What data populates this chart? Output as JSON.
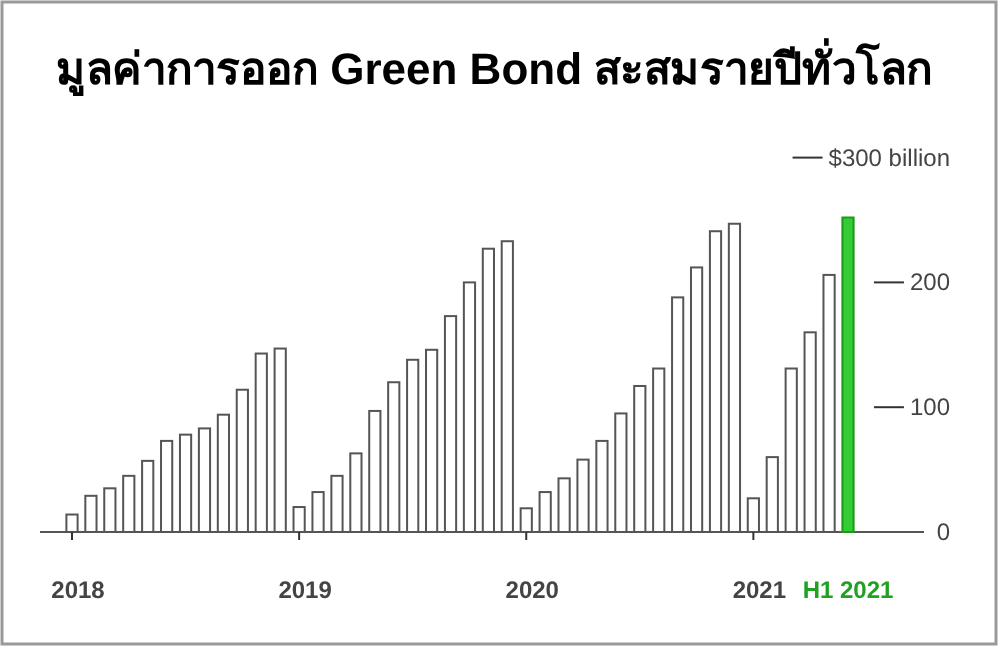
{
  "chart_data": {
    "type": "bar",
    "title": "มูลค่าการออก Green Bond สะสมรายปีทั่วโลก",
    "categories": [
      "2018",
      null,
      null,
      null,
      null,
      null,
      null,
      null,
      null,
      null,
      null,
      null,
      "2019",
      null,
      null,
      null,
      null,
      null,
      null,
      null,
      null,
      null,
      null,
      null,
      "2020",
      null,
      null,
      null,
      null,
      null,
      null,
      null,
      null,
      null,
      null,
      null,
      "2021",
      null,
      null,
      null,
      null,
      "H1 2021"
    ],
    "values": [
      14,
      29,
      35,
      45,
      57,
      73,
      78,
      83,
      94,
      114,
      143,
      147,
      20,
      32,
      45,
      63,
      97,
      120,
      138,
      146,
      173,
      200,
      227,
      233,
      19,
      32,
      43,
      58,
      73,
      95,
      117,
      131,
      188,
      212,
      241,
      247,
      27,
      60,
      131,
      160,
      206,
      252
    ],
    "colors": [
      "#ffffff",
      "#ffffff",
      "#ffffff",
      "#ffffff",
      "#ffffff",
      "#ffffff",
      "#ffffff",
      "#ffffff",
      "#ffffff",
      "#ffffff",
      "#ffffff",
      "#ffffff",
      "#ffffff",
      "#ffffff",
      "#ffffff",
      "#ffffff",
      "#ffffff",
      "#ffffff",
      "#ffffff",
      "#ffffff",
      "#ffffff",
      "#ffffff",
      "#ffffff",
      "#ffffff",
      "#ffffff",
      "#ffffff",
      "#ffffff",
      "#ffffff",
      "#ffffff",
      "#ffffff",
      "#ffffff",
      "#ffffff",
      "#ffffff",
      "#ffffff",
      "#ffffff",
      "#ffffff",
      "#ffffff",
      "#ffffff",
      "#ffffff",
      "#ffffff",
      "#ffffff",
      "#33cc33"
    ],
    "ylim": [
      0,
      300
    ],
    "yticks": [
      0,
      100,
      200,
      {
        "value": 300,
        "label": "$300 billion"
      }
    ],
    "grid": false
  }
}
